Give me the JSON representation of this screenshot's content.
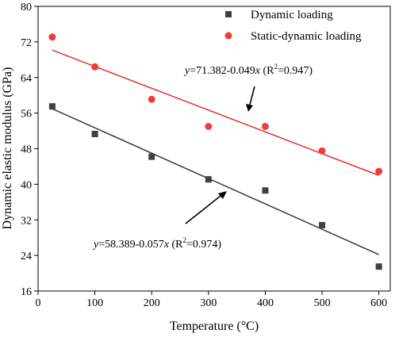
{
  "chart_data": {
    "type": "scatter",
    "xlabel": "Temperature (°C)",
    "ylabel": "Dynamic elastic modulus (GPa)",
    "xlim": [
      0,
      620
    ],
    "ylim": [
      16,
      80
    ],
    "xticks": [
      0,
      100,
      200,
      300,
      400,
      500,
      600
    ],
    "yticks": [
      16,
      24,
      32,
      40,
      48,
      56,
      64,
      72,
      80
    ],
    "grid": false,
    "legend_position": "top-right",
    "series": [
      {
        "name": "Dynamic loading",
        "marker": "square",
        "color": "#404040",
        "x": [
          25,
          100,
          200,
          300,
          400,
          500,
          600
        ],
        "y": [
          57.5,
          51.3,
          46.2,
          41.1,
          38.6,
          30.8,
          21.5
        ],
        "fit": {
          "intercept": 58.389,
          "slope": -0.057,
          "x_range": [
            25,
            600
          ],
          "color": "#3a3a3a"
        },
        "annotation": {
          "y_var": "y",
          "equation": "=58.389-0.057",
          "x_var": "x",
          "r2_open": " (R",
          "r2_sup": "2",
          "r2_close": "=0.974)"
        }
      },
      {
        "name": "Static-dynamic loading",
        "marker": "circle",
        "color": "#f03c3c",
        "x": [
          25,
          100,
          200,
          300,
          400,
          500,
          600
        ],
        "y": [
          73.1,
          66.4,
          59.1,
          53.0,
          53.0,
          47.5,
          42.9
        ],
        "fit": {
          "intercept": 71.382,
          "slope": -0.049,
          "x_range": [
            25,
            600
          ],
          "color": "#e83030"
        },
        "annotation": {
          "y_var": "y",
          "equation": "=71.382-0.049",
          "x_var": "x",
          "r2_open": " (R",
          "r2_sup": "2",
          "r2_close": "=0.947)"
        }
      }
    ]
  }
}
